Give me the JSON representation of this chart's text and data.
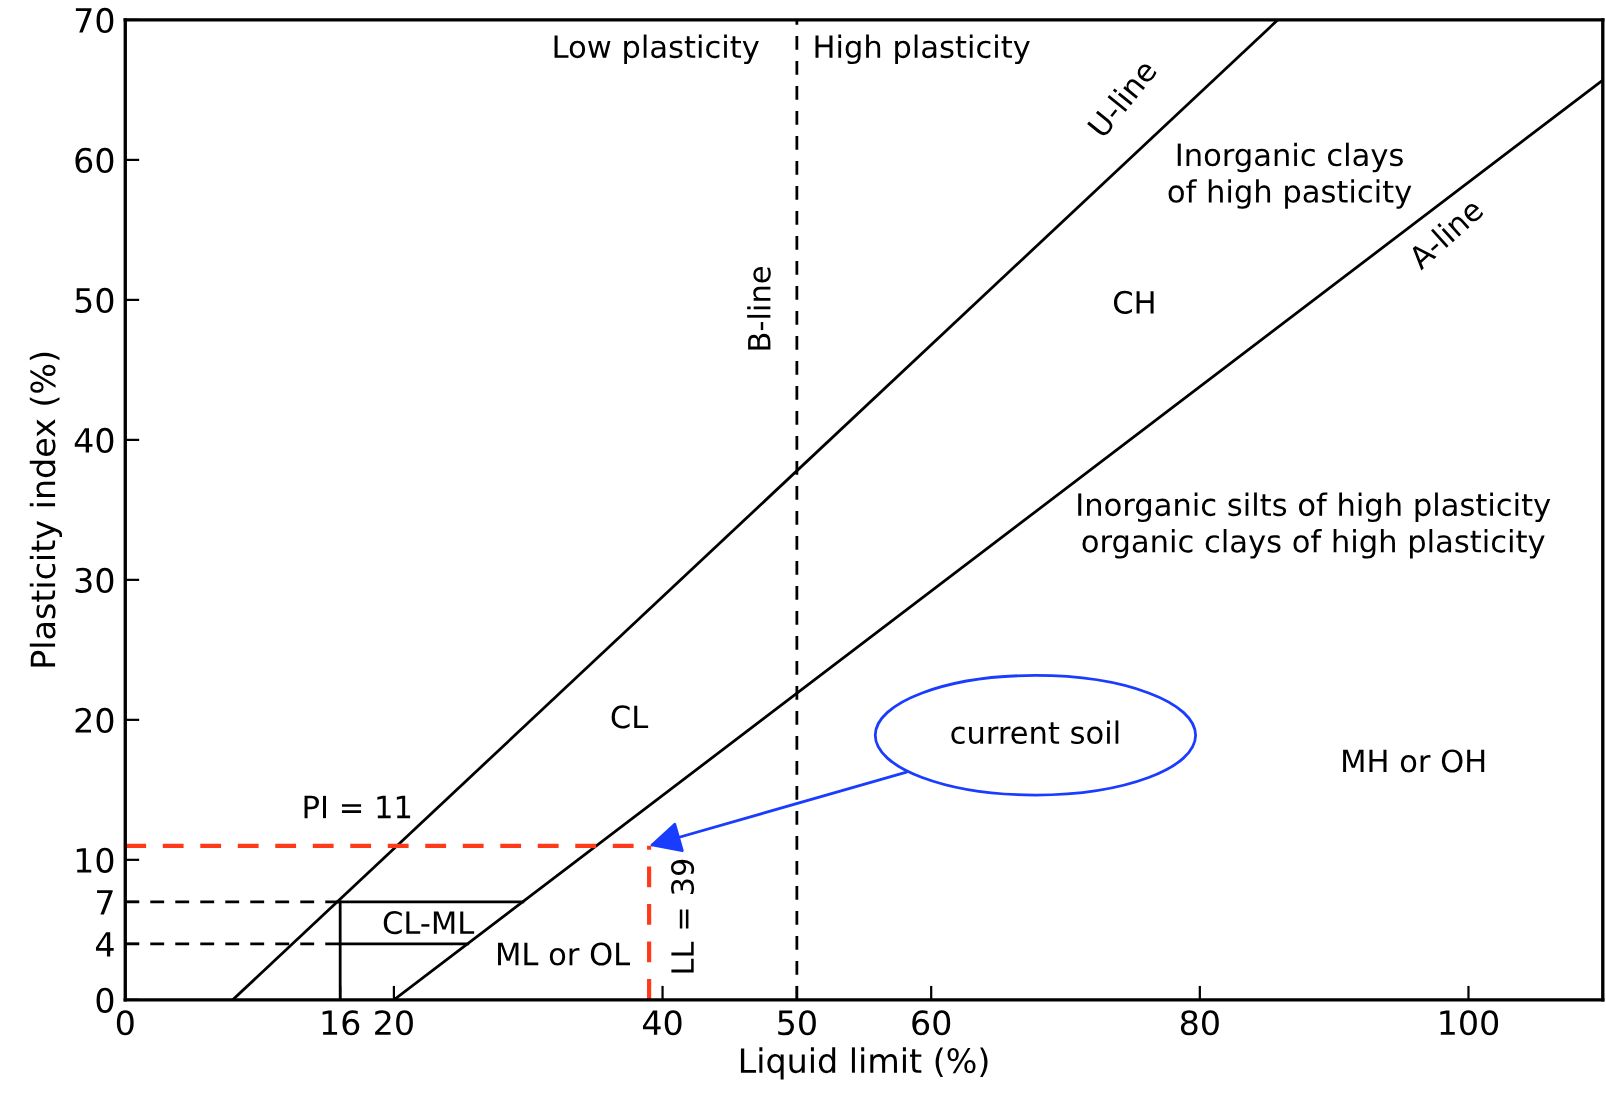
{
  "chart_data": {
    "type": "line",
    "xlabel": "Liquid limit (%)",
    "ylabel": "Plasticity index (%)",
    "xlim": [
      0,
      110
    ],
    "ylim": [
      0,
      70
    ],
    "xticks": [
      0,
      16,
      20,
      40,
      50,
      60,
      80,
      100
    ],
    "yticks": [
      0,
      4,
      7,
      10,
      20,
      30,
      40,
      50,
      60,
      70
    ],
    "marker": "none",
    "series": [
      {
        "color": "#000000",
        "line_style": "solid",
        "x": [
          8,
          85.8
        ],
        "values": [
          0,
          70
        ]
      },
      {
        "color": "#000000",
        "line_style": "solid",
        "x": [
          20,
          110
        ],
        "values": [
          0,
          65.7
        ]
      },
      {
        "color": "#000000",
        "line_style": "solid",
        "x": [
          15.8,
          29.6
        ],
        "values": [
          7,
          7
        ]
      },
      {
        "color": "#000000",
        "line_style": "solid",
        "x": [
          16,
          25.5
        ],
        "values": [
          4,
          4
        ]
      },
      {
        "color": "#000000",
        "line_style": "solid",
        "x": [
          16,
          16
        ],
        "values": [
          0,
          7
        ]
      },
      {
        "color": "#000000",
        "line_style": "dashed",
        "x": [
          0,
          16
        ],
        "values": [
          7,
          7
        ]
      },
      {
        "color": "#000000",
        "line_style": "dashed",
        "x": [
          0,
          16
        ],
        "values": [
          4,
          4
        ]
      },
      {
        "color": "#ff3a1a",
        "line_style": "dashed",
        "x": [
          0,
          39
        ],
        "values": [
          11,
          11
        ]
      },
      {
        "color": "#ff3a1a",
        "line_style": "dashed",
        "x": [
          39,
          39
        ],
        "values": [
          0,
          11
        ]
      }
    ],
    "ref_lines": [
      {
        "axis": "x",
        "value": 50,
        "label": "B-line",
        "color": "#000000",
        "line_style": "dashed"
      }
    ],
    "annotations": [
      "Low plasticity",
      "High plasticity",
      "U-line",
      "Inorganic clays\nof high pasticity",
      "A-line",
      "CH",
      "Inorganic silts of high plasticity\norganic clays of high plasticity",
      "CL",
      "MH or OH",
      "PI = 11",
      "LL = 39",
      "CL-ML",
      "ML or OL",
      "current soil"
    ]
  }
}
